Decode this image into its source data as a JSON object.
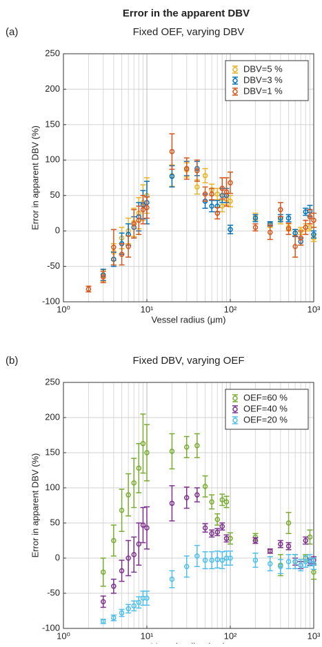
{
  "title": "Error in the apparent DBV",
  "chart_data": [
    {
      "type": "errorbar",
      "panel": "(a)",
      "title": "Fixed OEF, varying DBV",
      "xlabel": "Vessel radius (μm)",
      "ylabel": "Error in apparent DBV (%)",
      "xscale": "log",
      "xlim": [
        1,
        1000
      ],
      "xticks": [
        {
          "value": 1,
          "label": "10⁰"
        },
        {
          "value": 10,
          "label": "10¹"
        },
        {
          "value": 100,
          "label": "10²"
        },
        {
          "value": 1000,
          "label": "10³"
        }
      ],
      "ylim": [
        -100,
        250
      ],
      "yticks": [
        -100,
        -50,
        0,
        50,
        100,
        150,
        200,
        250
      ],
      "grid": true,
      "minor_grid": true,
      "legend": "top-right",
      "series": [
        {
          "name": "DBV=5 %",
          "color": "#EDB120",
          "x": [
            3,
            4,
            5,
            6,
            7,
            8,
            9,
            10,
            20,
            30,
            40,
            50,
            60,
            70,
            80,
            90,
            100,
            200,
            300,
            400,
            500,
            600,
            700,
            800,
            900,
            1000
          ],
          "values": [
            -63,
            -30,
            -10,
            0,
            12,
            25,
            40,
            50,
            78,
            86,
            62,
            78,
            58,
            52,
            35,
            45,
            42,
            20,
            8,
            15,
            5,
            -3,
            0,
            5,
            5,
            -10
          ],
          "errors": [
            8,
            12,
            15,
            18,
            20,
            22,
            25,
            25,
            15,
            10,
            10,
            10,
            8,
            8,
            8,
            8,
            8,
            5,
            3,
            5,
            5,
            5,
            5,
            5,
            5,
            5
          ]
        },
        {
          "name": "DBV=3 %",
          "color": "#0072BD",
          "x": [
            3,
            4,
            5,
            6,
            7,
            8,
            9,
            10,
            20,
            30,
            40,
            50,
            60,
            70,
            80,
            90,
            100,
            200,
            300,
            400,
            500,
            600,
            700,
            800,
            900,
            1000
          ],
          "values": [
            -62,
            -40,
            -18,
            -5,
            5,
            20,
            37,
            40,
            77,
            88,
            88,
            42,
            35,
            35,
            50,
            50,
            2,
            18,
            10,
            18,
            18,
            -3,
            -15,
            27,
            28,
            -5
          ],
          "errors": [
            8,
            10,
            15,
            15,
            15,
            20,
            20,
            30,
            15,
            10,
            10,
            10,
            8,
            8,
            10,
            10,
            6,
            5,
            3,
            5,
            5,
            5,
            5,
            5,
            8,
            5
          ]
        },
        {
          "name": "DBV=1 %",
          "color": "#D95319",
          "x": [
            2,
            3,
            4,
            5,
            6,
            7,
            8,
            9,
            10,
            20,
            30,
            40,
            50,
            60,
            70,
            80,
            90,
            100,
            200,
            300,
            400,
            500,
            600,
            700,
            800,
            900,
            1000
          ],
          "values": [
            -82,
            -65,
            -23,
            -33,
            -22,
            10,
            15,
            30,
            33,
            112,
            88,
            85,
            52,
            52,
            25,
            60,
            55,
            68,
            5,
            -2,
            30,
            3,
            -22,
            -10,
            5,
            20,
            15
          ],
          "errors": [
            4,
            8,
            25,
            15,
            15,
            20,
            20,
            20,
            15,
            25,
            15,
            15,
            10,
            8,
            8,
            15,
            20,
            15,
            5,
            10,
            10,
            8,
            15,
            10,
            10,
            10,
            10
          ]
        }
      ]
    },
    {
      "type": "errorbar",
      "panel": "(b)",
      "title": "Fixed DBV, varying OEF",
      "xlabel": "Vessel radius (μm)",
      "ylabel": "Error in apparent DBV (%)",
      "xscale": "log",
      "xlim": [
        1,
        1000
      ],
      "xticks": [
        {
          "value": 1,
          "label": "10⁰"
        },
        {
          "value": 10,
          "label": "10¹"
        },
        {
          "value": 100,
          "label": "10²"
        },
        {
          "value": 1000,
          "label": "10³"
        }
      ],
      "ylim": [
        -100,
        250
      ],
      "yticks": [
        -100,
        -50,
        0,
        50,
        100,
        150,
        200,
        250
      ],
      "grid": true,
      "minor_grid": true,
      "legend": "top-right",
      "series": [
        {
          "name": "OEF=60 %",
          "color": "#77AC30",
          "x": [
            3,
            4,
            5,
            6,
            7,
            8,
            9,
            10,
            20,
            30,
            40,
            50,
            60,
            70,
            80,
            90,
            100,
            200,
            300,
            400,
            500,
            600,
            700,
            800,
            900,
            1000
          ],
          "values": [
            -20,
            25,
            68,
            90,
            107,
            128,
            163,
            150,
            152,
            158,
            160,
            102,
            80,
            55,
            83,
            80,
            28,
            30,
            10,
            -10,
            50,
            -5,
            -10,
            0,
            30,
            -20
          ],
          "errors": [
            20,
            22,
            30,
            30,
            35,
            35,
            42,
            40,
            25,
            15,
            17,
            15,
            10,
            8,
            8,
            8,
            8,
            5,
            3,
            15,
            15,
            10,
            5,
            5,
            10,
            10
          ]
        },
        {
          "name": "OEF=40 %",
          "color": "#7E2F8E",
          "x": [
            3,
            4,
            5,
            6,
            7,
            8,
            9,
            10,
            20,
            30,
            40,
            50,
            60,
            70,
            80,
            90,
            200,
            300,
            400,
            500,
            600,
            700,
            800,
            900,
            1000
          ],
          "values": [
            -62,
            -40,
            -18,
            0,
            5,
            20,
            47,
            43,
            78,
            86,
            90,
            43,
            35,
            37,
            45,
            28,
            25,
            10,
            20,
            17,
            -5,
            -10,
            25,
            -5,
            -3
          ],
          "errors": [
            8,
            10,
            15,
            25,
            25,
            30,
            25,
            30,
            25,
            15,
            10,
            6,
            5,
            5,
            5,
            5,
            4,
            3,
            5,
            5,
            5,
            5,
            5,
            5,
            5
          ]
        },
        {
          "name": "OEF=20 %",
          "color": "#4DBEEE",
          "x": [
            3,
            4,
            5,
            6,
            7,
            8,
            9,
            10,
            20,
            30,
            40,
            50,
            60,
            70,
            80,
            90,
            100,
            200,
            300,
            400,
            500,
            600,
            700,
            800,
            900,
            1000
          ],
          "values": [
            -90,
            -85,
            -78,
            -72,
            -68,
            -63,
            -57,
            -57,
            -30,
            -12,
            3,
            -3,
            -3,
            -2,
            -3,
            0,
            0,
            -3,
            -8,
            -12,
            -5,
            -5,
            -10,
            -5,
            -3,
            -8
          ],
          "errors": [
            3,
            4,
            5,
            6,
            7,
            8,
            10,
            10,
            12,
            15,
            15,
            12,
            12,
            12,
            12,
            10,
            10,
            10,
            10,
            10,
            10,
            10,
            8,
            8,
            8,
            8
          ]
        }
      ]
    }
  ]
}
